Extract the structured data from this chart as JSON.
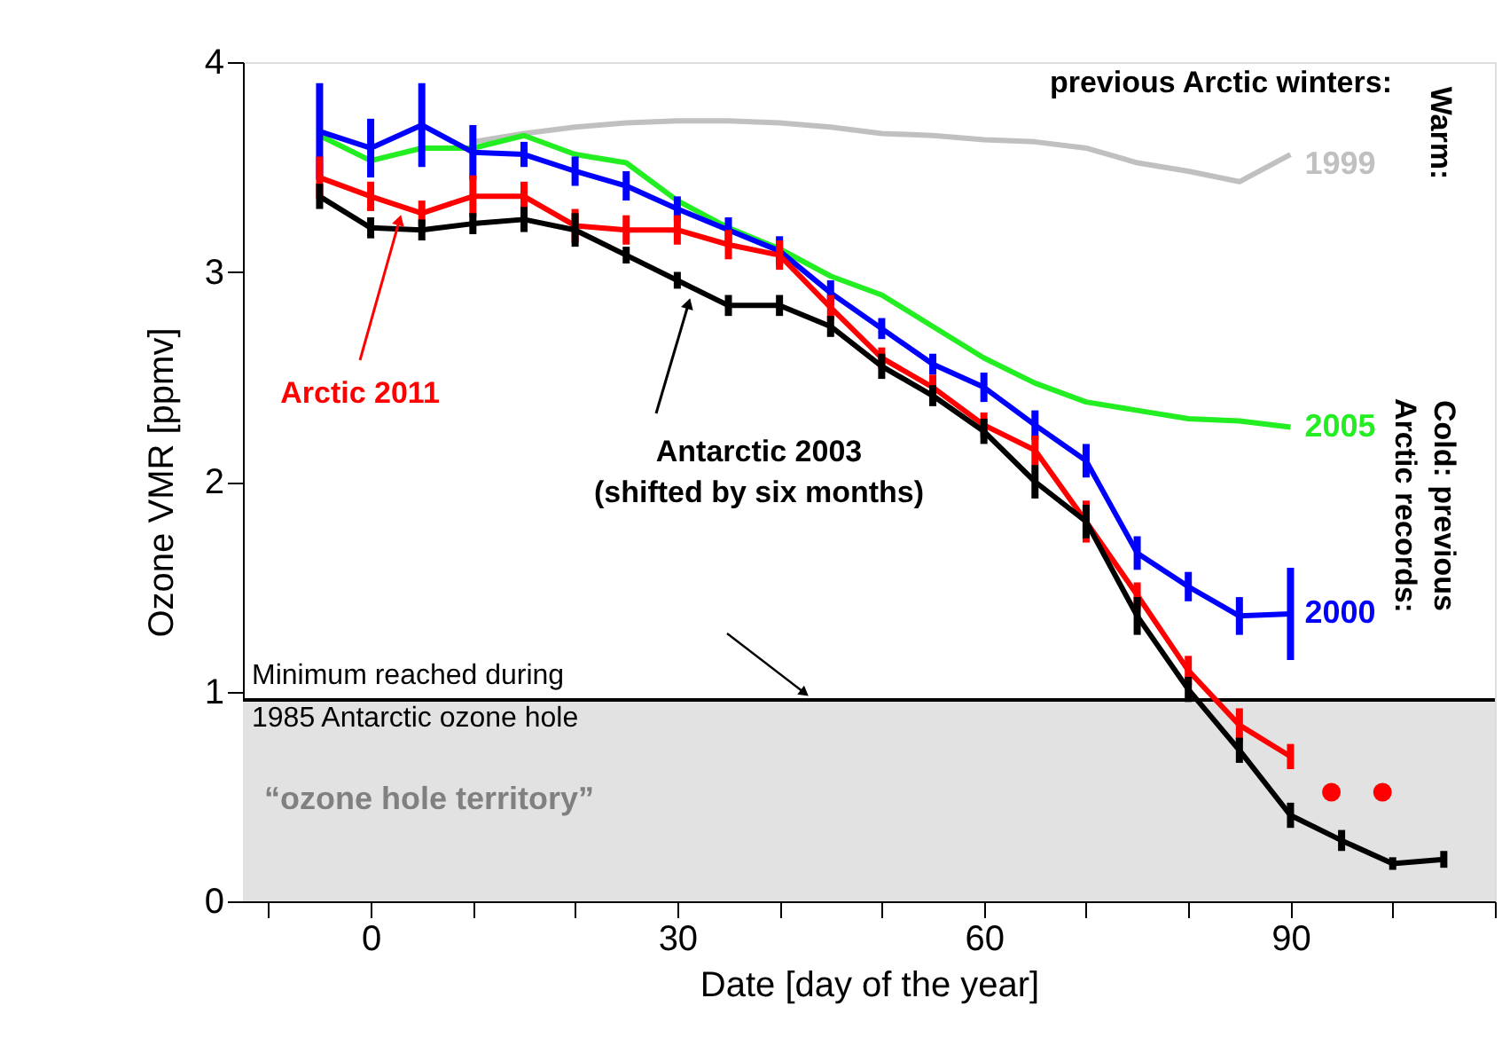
{
  "chart_data": {
    "type": "line",
    "xlabel": "Date [day of the year]",
    "ylabel": "Ozone VMR [ppmv]",
    "xlim": [
      -12.5,
      110
    ],
    "ylim": [
      0,
      4
    ],
    "xticks": [
      {
        "value": -10,
        "label": null
      },
      0,
      {
        "value": 10,
        "label": null
      },
      {
        "value": 20,
        "label": null
      },
      30,
      {
        "value": 40,
        "label": null
      },
      {
        "value": 50,
        "label": null
      },
      60,
      {
        "value": 70,
        "label": null
      },
      {
        "value": 80,
        "label": null
      },
      90,
      {
        "value": 100,
        "label": null
      },
      {
        "value": 110,
        "label": null
      }
    ],
    "yticks": [
      0,
      1,
      2,
      3,
      4
    ],
    "grid": false,
    "series": [
      {
        "name": "1999",
        "color": "#c0c0c0",
        "x": [
          10,
          15,
          20,
          25,
          30,
          35,
          40,
          45,
          50,
          55,
          60,
          65,
          70,
          75,
          80,
          85,
          90
        ],
        "values": [
          3.62,
          3.66,
          3.69,
          3.71,
          3.72,
          3.72,
          3.71,
          3.69,
          3.66,
          3.65,
          3.63,
          3.62,
          3.59,
          3.52,
          3.48,
          3.43,
          3.56
        ]
      },
      {
        "name": "2005",
        "color": "#22ee22",
        "x": [
          -5,
          0,
          5,
          10,
          15,
          20,
          25,
          30,
          35,
          40,
          45,
          50,
          55,
          60,
          65,
          70,
          75,
          80,
          85,
          90
        ],
        "values": [
          3.65,
          3.53,
          3.59,
          3.59,
          3.65,
          3.56,
          3.52,
          3.34,
          3.21,
          3.11,
          2.98,
          2.89,
          2.74,
          2.59,
          2.47,
          2.38,
          2.34,
          2.3,
          2.29,
          2.26
        ]
      },
      {
        "name": "2000",
        "color": "#0000ff",
        "x": [
          -5,
          0,
          5,
          10,
          15,
          20,
          25,
          30,
          35,
          40,
          45,
          50,
          55,
          60,
          65,
          70,
          75,
          80,
          85,
          90
        ],
        "values": [
          3.67,
          3.59,
          3.7,
          3.57,
          3.56,
          3.48,
          3.41,
          3.3,
          3.2,
          3.1,
          2.9,
          2.73,
          2.56,
          2.45,
          2.27,
          2.1,
          1.66,
          1.5,
          1.36,
          1.37
        ],
        "errors": [
          0.23,
          0.14,
          0.2,
          0.13,
          0.06,
          0.07,
          0.07,
          0.06,
          0.06,
          0.07,
          0.06,
          0.05,
          0.05,
          0.07,
          0.07,
          0.08,
          0.08,
          0.07,
          0.09,
          0.22
        ]
      },
      {
        "name": "Arctic 2011",
        "color": "#ff0000",
        "x": [
          -5,
          0,
          5,
          10,
          15,
          20,
          25,
          30,
          35,
          40,
          45,
          50,
          55,
          60,
          65,
          70,
          75,
          80,
          85,
          90
        ],
        "values": [
          3.45,
          3.36,
          3.28,
          3.36,
          3.36,
          3.22,
          3.2,
          3.2,
          3.13,
          3.08,
          2.83,
          2.59,
          2.45,
          2.27,
          2.15,
          1.81,
          1.46,
          1.1,
          0.84,
          0.69
        ],
        "errors": [
          0.1,
          0.07,
          0.06,
          0.1,
          0.07,
          0.08,
          0.07,
          0.07,
          0.07,
          0.07,
          0.06,
          0.05,
          0.06,
          0.06,
          0.07,
          0.1,
          0.06,
          0.07,
          0.08,
          0.06
        ]
      },
      {
        "name": "Antarctic 2003\n(shifted by six months)",
        "color": "#000000",
        "x": [
          -5,
          0,
          5,
          10,
          15,
          20,
          25,
          30,
          35,
          40,
          45,
          50,
          55,
          60,
          65,
          70,
          75,
          80,
          85,
          90,
          95,
          100,
          105
        ],
        "values": [
          3.36,
          3.21,
          3.2,
          3.23,
          3.25,
          3.2,
          3.08,
          2.96,
          2.84,
          2.84,
          2.74,
          2.55,
          2.41,
          2.24,
          2.0,
          1.81,
          1.36,
          1.01,
          0.72,
          0.41,
          0.29,
          0.18,
          0.2
        ],
        "errors": [
          0.06,
          0.05,
          0.05,
          0.05,
          0.06,
          0.08,
          0.04,
          0.04,
          0.05,
          0.05,
          0.05,
          0.06,
          0.05,
          0.06,
          0.08,
          0.08,
          0.09,
          0.06,
          0.06,
          0.06,
          0.05,
          0.03,
          0.04
        ]
      },
      {
        "type": "scatter",
        "color": "#ff0000",
        "x": [
          94,
          99
        ],
        "values": [
          0.52,
          0.52
        ]
      }
    ],
    "ref_lines": [
      {
        "axis": "y",
        "value": 0.96,
        "label": "Minimum reached during\n1985 Antarctic ozone hole",
        "color": "#000000"
      }
    ],
    "bands": [
      {
        "axis": "y",
        "from": 0,
        "to": 0.96,
        "label": "“ozone hole territory”",
        "color": "#e2e2e2"
      }
    ],
    "annotations": [
      "previous Arctic winters:",
      "Warm:",
      "Cold: previous\nArctic records:"
    ]
  }
}
